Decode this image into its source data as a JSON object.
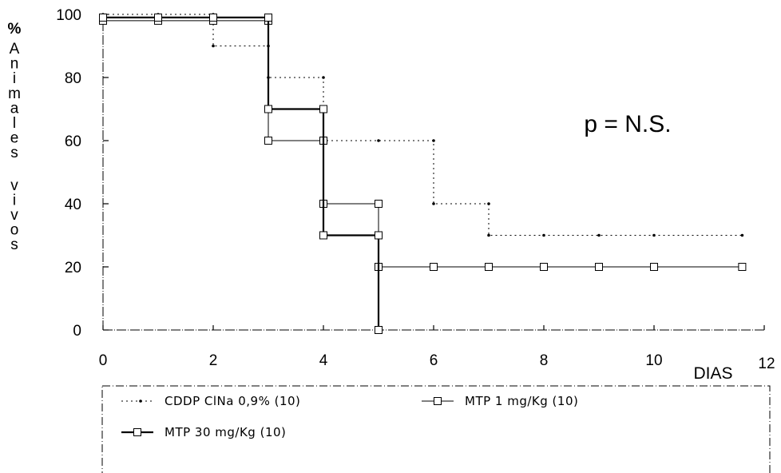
{
  "chart_data": {
    "type": "line",
    "step": true,
    "ylabel_prefix": "%",
    "ylabel": "Animales vivos",
    "xlabel": "DIAS",
    "annotation": "p = N.S.",
    "xlim": [
      0,
      12
    ],
    "ylim": [
      0,
      100
    ],
    "x_ticks": [
      "0",
      "2",
      "4",
      "6",
      "8",
      "10",
      "12"
    ],
    "y_ticks": [
      "0",
      "20",
      "40",
      "60",
      "80",
      "100"
    ],
    "grid": false,
    "legend_position": "bottom",
    "series": [
      {
        "name": "CDDP ClNa 0,9% (10)",
        "style": "dotted",
        "marker": "dot",
        "color": "#000000",
        "points": [
          [
            0,
            100
          ],
          [
            1,
            100
          ],
          [
            2,
            100
          ],
          [
            2,
            90
          ],
          [
            3,
            90
          ],
          [
            3,
            80
          ],
          [
            4,
            80
          ],
          [
            4,
            60
          ],
          [
            5,
            60
          ],
          [
            6,
            60
          ],
          [
            6,
            40
          ],
          [
            7,
            40
          ],
          [
            7,
            30
          ],
          [
            8,
            30
          ],
          [
            9,
            30
          ],
          [
            10,
            30
          ],
          [
            11.6,
            30
          ]
        ]
      },
      {
        "name": "MTP 1 mg/Kg (10)",
        "style": "thin",
        "marker": "square",
        "color": "#000000",
        "points": [
          [
            0,
            98
          ],
          [
            1,
            98
          ],
          [
            2,
            98
          ],
          [
            3,
            98
          ],
          [
            3,
            60
          ],
          [
            4,
            60
          ],
          [
            4,
            40
          ],
          [
            5,
            40
          ],
          [
            5,
            20
          ],
          [
            6,
            20
          ],
          [
            7,
            20
          ],
          [
            8,
            20
          ],
          [
            9,
            20
          ],
          [
            10,
            20
          ],
          [
            11.6,
            20
          ]
        ]
      },
      {
        "name": "MTP 30 mg/Kg (10)",
        "style": "thick",
        "marker": "square",
        "color": "#000000",
        "points": [
          [
            0,
            99
          ],
          [
            1,
            99
          ],
          [
            2,
            99
          ],
          [
            3,
            99
          ],
          [
            3,
            70
          ],
          [
            4,
            70
          ],
          [
            4,
            30
          ],
          [
            5,
            30
          ],
          [
            5,
            0
          ]
        ]
      }
    ]
  }
}
